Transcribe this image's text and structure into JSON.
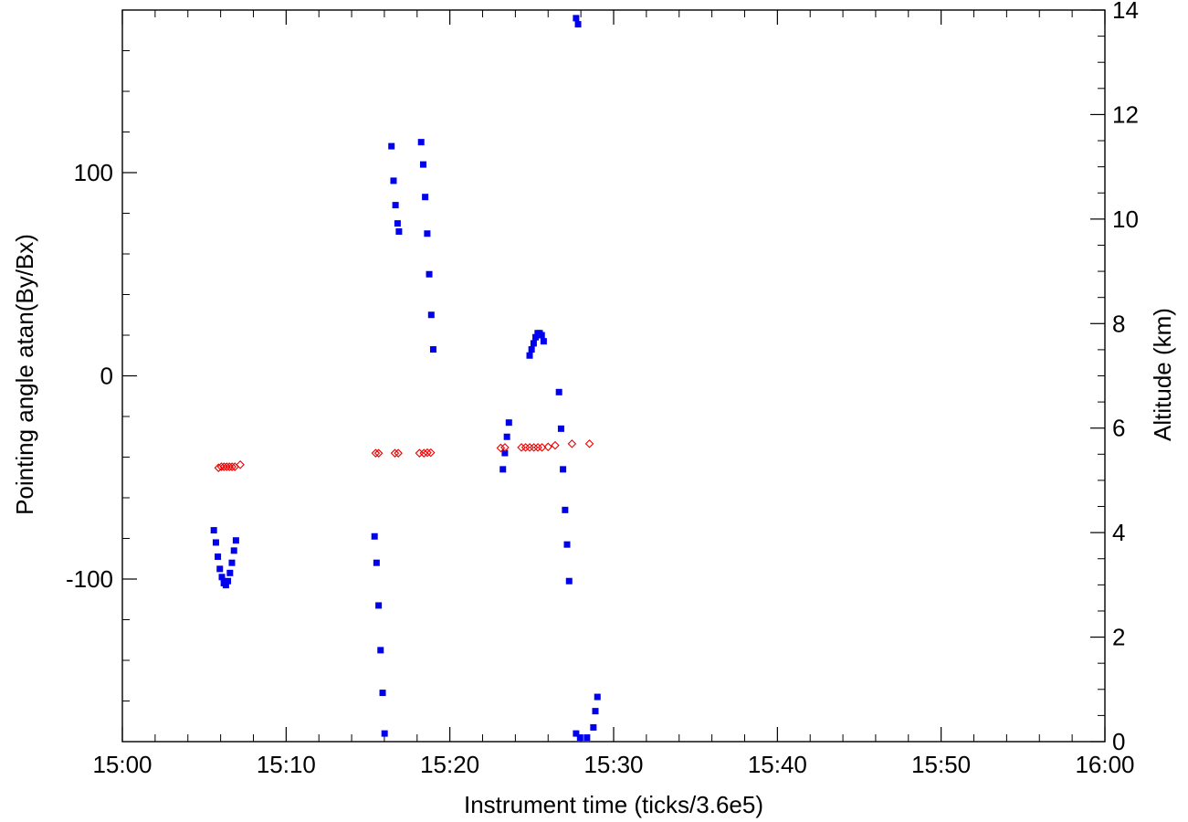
{
  "chart_data": {
    "type": "scatter",
    "title": "",
    "xlabel": "Instrument time (ticks/3.6e5)",
    "ylabel": "Pointing angle atan(By/Bx)",
    "y2label": "Altitude (km)",
    "xlim": [
      15.0,
      16.0
    ],
    "ylim": [
      -180,
      180
    ],
    "y2lim": [
      0,
      14
    ],
    "x_ticks": [
      15.0,
      15.1667,
      15.3333,
      15.5,
      15.6667,
      15.8333,
      16.0
    ],
    "x_tick_labels": [
      "15:00",
      "15:10",
      "15:20",
      "15:30",
      "15:40",
      "15:50",
      "16:00"
    ],
    "y_ticks": [
      -100,
      0,
      100
    ],
    "y_tick_labels": [
      "-100",
      "0",
      "100"
    ],
    "y2_ticks": [
      0,
      2,
      4,
      6,
      8,
      10,
      12,
      14
    ],
    "y2_tick_labels": [
      "0",
      "2",
      "4",
      "6",
      "8",
      "10",
      "12",
      "14"
    ],
    "grid": false,
    "colors": {
      "pointing": "#0000ee",
      "altitude": "#ee0000",
      "axes": "#000000"
    },
    "series": [
      {
        "axis": "left",
        "marker": "square",
        "values": [
          [
            15.0931,
            -76
          ],
          [
            15.0952,
            -82
          ],
          [
            15.0972,
            -89
          ],
          [
            15.0992,
            -95
          ],
          [
            15.1013,
            -99
          ],
          [
            15.1033,
            -102
          ],
          [
            15.1054,
            -103
          ],
          [
            15.1074,
            -101
          ],
          [
            15.1095,
            -97
          ],
          [
            15.1115,
            -92
          ],
          [
            15.1136,
            -86
          ],
          [
            15.1156,
            -81
          ],
          [
            15.2567,
            -79
          ],
          [
            15.2587,
            -92
          ],
          [
            15.2608,
            -113
          ],
          [
            15.2628,
            -135
          ],
          [
            15.2649,
            -156
          ],
          [
            15.2669,
            -176
          ],
          [
            15.2739,
            113
          ],
          [
            15.276,
            96
          ],
          [
            15.278,
            84
          ],
          [
            15.2801,
            75
          ],
          [
            15.2815,
            71
          ],
          [
            15.3041,
            115
          ],
          [
            15.3062,
            104
          ],
          [
            15.3082,
            88
          ],
          [
            15.3103,
            70
          ],
          [
            15.3123,
            50
          ],
          [
            15.3144,
            30
          ],
          [
            15.3164,
            13
          ],
          [
            15.3873,
            -46
          ],
          [
            15.3893,
            -38
          ],
          [
            15.3914,
            -30
          ],
          [
            15.3934,
            -23
          ],
          [
            15.4145,
            10
          ],
          [
            15.4165,
            13
          ],
          [
            15.4186,
            16
          ],
          [
            15.4206,
            19
          ],
          [
            15.4227,
            21
          ],
          [
            15.4247,
            21
          ],
          [
            15.4268,
            20
          ],
          [
            15.4288,
            17
          ],
          [
            15.4444,
            -8
          ],
          [
            15.4465,
            -26
          ],
          [
            15.4485,
            -46
          ],
          [
            15.4506,
            -66
          ],
          [
            15.4526,
            -83
          ],
          [
            15.4547,
            -101
          ],
          [
            15.4618,
            176
          ],
          [
            15.4638,
            173
          ],
          [
            15.4618,
            -176
          ],
          [
            15.4659,
            -178
          ],
          [
            15.4729,
            -178
          ],
          [
            15.4794,
            -173
          ],
          [
            15.4814,
            -165
          ],
          [
            15.4835,
            -158
          ]
        ]
      },
      {
        "axis": "right",
        "marker": "diamond",
        "values": [
          [
            15.0979,
            5.24
          ],
          [
            15.1007,
            5.26
          ],
          [
            15.1034,
            5.26
          ],
          [
            15.1062,
            5.26
          ],
          [
            15.109,
            5.26
          ],
          [
            15.1117,
            5.26
          ],
          [
            15.1145,
            5.26
          ],
          [
            15.12,
            5.3
          ],
          [
            15.2578,
            5.52
          ],
          [
            15.2608,
            5.52
          ],
          [
            15.2774,
            5.52
          ],
          [
            15.2808,
            5.52
          ],
          [
            15.3024,
            5.52
          ],
          [
            15.3069,
            5.52
          ],
          [
            15.3104,
            5.53
          ],
          [
            15.3139,
            5.53
          ],
          [
            15.3851,
            5.62
          ],
          [
            15.3893,
            5.63
          ],
          [
            15.4062,
            5.63
          ],
          [
            15.4104,
            5.63
          ],
          [
            15.4146,
            5.63
          ],
          [
            15.4188,
            5.63
          ],
          [
            15.4229,
            5.63
          ],
          [
            15.4271,
            5.63
          ],
          [
            15.4333,
            5.64
          ],
          [
            15.4405,
            5.67
          ],
          [
            15.4576,
            5.7
          ],
          [
            15.4754,
            5.7
          ]
        ]
      }
    ]
  }
}
